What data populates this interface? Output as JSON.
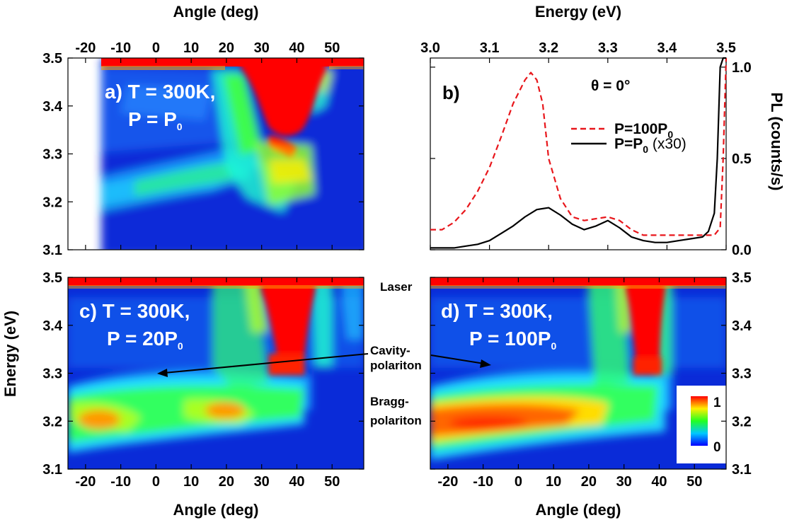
{
  "chart_data": [
    {
      "panel": "a",
      "type": "heatmap",
      "label_line1": "a) T = 300K,",
      "label_line2": "P = P",
      "label_line2_sub": "0",
      "xlabel": "Angle (deg)",
      "xlabel_position": "top",
      "x_ticks": [
        "-20",
        "-10",
        "0",
        "10",
        "20",
        "30",
        "40",
        "50"
      ],
      "xlim": [
        -25,
        59
      ],
      "ylim": [
        3.1,
        3.5
      ],
      "y_ticks": [
        "3.1",
        "3.2",
        "3.3",
        "3.4",
        "3.5"
      ],
      "data_angle_range": [
        -16,
        59
      ]
    },
    {
      "panel": "b",
      "type": "line",
      "label": "b)",
      "xlabel": "Energy (eV)",
      "xlabel_position": "top",
      "ylabel": "PL (counts/s)",
      "xlim": [
        3.0,
        3.5
      ],
      "ylim": [
        0,
        1.05
      ],
      "x_ticks": [
        "3.0",
        "3.1",
        "3.2",
        "3.3",
        "3.4",
        "3.5"
      ],
      "y_ticks": [
        "0.0",
        "0.5",
        "1.0"
      ],
      "legend_title": "θ = 0°",
      "legend_placement": "top-right",
      "series": [
        {
          "name": "P=100P",
          "name_sub": "0",
          "name_suffix": "",
          "color": "#e8161b",
          "dash": true,
          "x": [
            3.0,
            3.02,
            3.04,
            3.06,
            3.08,
            3.1,
            3.12,
            3.14,
            3.16,
            3.17,
            3.18,
            3.19,
            3.2,
            3.22,
            3.24,
            3.26,
            3.28,
            3.3,
            3.32,
            3.34,
            3.36,
            3.38,
            3.4,
            3.42,
            3.44,
            3.46,
            3.48,
            3.49,
            3.495,
            3.5
          ],
          "y": [
            0.11,
            0.11,
            0.15,
            0.22,
            0.32,
            0.45,
            0.62,
            0.8,
            0.93,
            0.97,
            0.93,
            0.8,
            0.5,
            0.28,
            0.18,
            0.16,
            0.17,
            0.18,
            0.16,
            0.11,
            0.08,
            0.08,
            0.08,
            0.08,
            0.08,
            0.08,
            0.08,
            0.12,
            0.5,
            1.05
          ]
        },
        {
          "name": "P=P",
          "name_sub": "0",
          "name_suffix": " (x30)",
          "color": "#000000",
          "dash": false,
          "x": [
            3.0,
            3.02,
            3.04,
            3.06,
            3.08,
            3.1,
            3.12,
            3.14,
            3.16,
            3.18,
            3.2,
            3.22,
            3.24,
            3.26,
            3.28,
            3.3,
            3.32,
            3.34,
            3.36,
            3.38,
            3.4,
            3.42,
            3.44,
            3.46,
            3.47,
            3.48,
            3.485,
            3.49,
            3.495,
            3.5
          ],
          "y": [
            0.01,
            0.01,
            0.01,
            0.02,
            0.03,
            0.05,
            0.09,
            0.13,
            0.18,
            0.22,
            0.23,
            0.19,
            0.14,
            0.11,
            0.13,
            0.16,
            0.12,
            0.07,
            0.05,
            0.04,
            0.04,
            0.05,
            0.06,
            0.07,
            0.1,
            0.2,
            0.5,
            1.0,
            1.05,
            1.05
          ]
        }
      ]
    },
    {
      "panel": "c",
      "type": "heatmap",
      "label_line1": "c) T = 300K,",
      "label_line2": "P = 20P",
      "label_line2_sub": "0",
      "ylabel": "Energy (eV)",
      "xlabel": "Angle (deg)",
      "x_ticks": [
        "-20",
        "-10",
        "0",
        "10",
        "20",
        "30",
        "40",
        "50"
      ],
      "xlim": [
        -25,
        59
      ],
      "ylim": [
        3.1,
        3.5
      ],
      "y_ticks": [
        "3.1",
        "3.2",
        "3.3",
        "3.4",
        "3.5"
      ]
    },
    {
      "panel": "d",
      "type": "heatmap",
      "label_line1": "d) T = 300K,",
      "label_line2": "P = 100P",
      "label_line2_sub": "0",
      "xlabel": "Angle (deg)",
      "x_ticks": [
        "-20",
        "-10",
        "0",
        "10",
        "20",
        "30",
        "40",
        "50"
      ],
      "xlim": [
        -25,
        59
      ],
      "ylim": [
        3.1,
        3.5
      ],
      "y_ticks": [
        "3.1",
        "3.2",
        "3.3",
        "3.4",
        "3.5"
      ],
      "colorbar_ticks": [
        "0",
        "1"
      ]
    }
  ],
  "annotations": {
    "laser": "Laser",
    "cavity_line1": "Cavity-",
    "cavity_line2": "polariton",
    "bragg_line1": "Bragg-",
    "bragg_line2": "polariton"
  },
  "colors": {
    "jet_blue": "#0a2bd8",
    "jet_red": "#ff0000"
  }
}
